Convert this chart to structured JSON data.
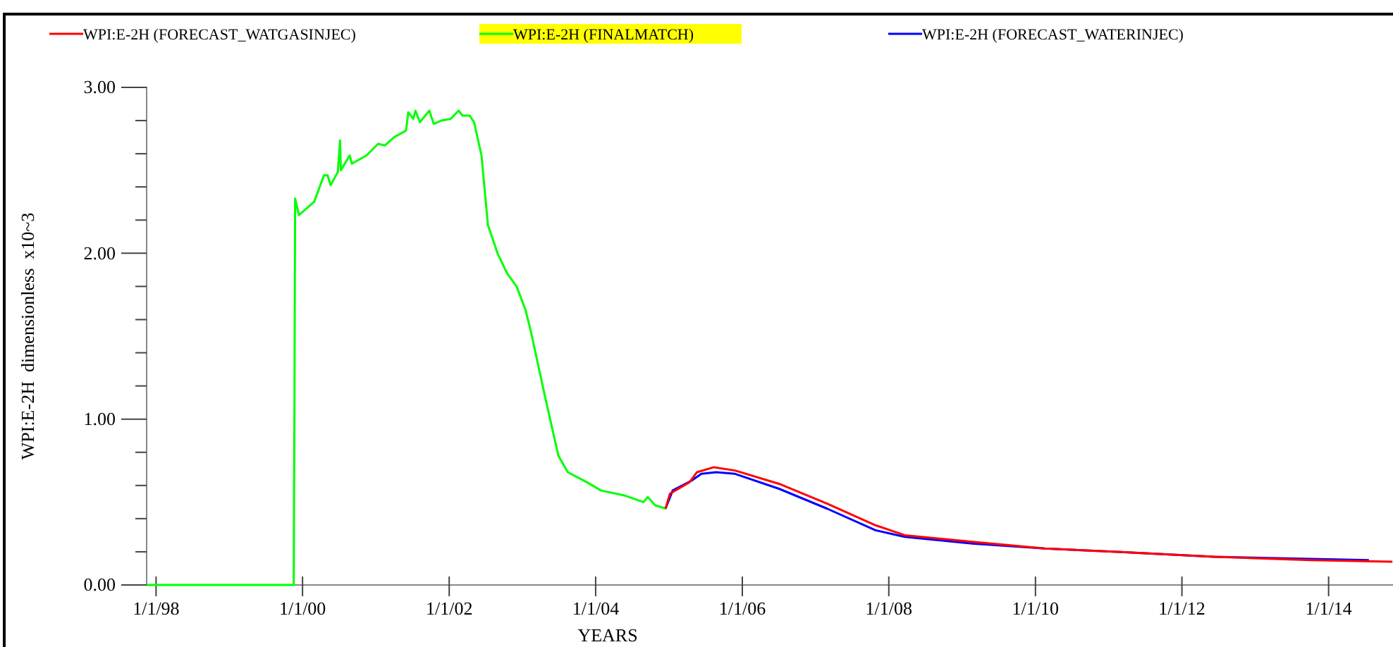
{
  "chart_data": {
    "type": "line",
    "xlabel": "YEARS",
    "ylabel": "WPI:E-2H  dimensionless  x10~3",
    "xlim": [
      "1997-11-15",
      "2014-11-18"
    ],
    "xticks": [
      {
        "value": "1998-01-01",
        "label": "1/1/98"
      },
      {
        "value": "2000-01-01",
        "label": "1/1/00"
      },
      {
        "value": "2002-01-01",
        "label": "1/1/02"
      },
      {
        "value": "2004-01-01",
        "label": "1/1/04"
      },
      {
        "value": "2006-01-01",
        "label": "1/1/06"
      },
      {
        "value": "2008-01-01",
        "label": "1/1/08"
      },
      {
        "value": "2010-01-01",
        "label": "1/1/10"
      },
      {
        "value": "2012-01-01",
        "label": "1/1/12"
      },
      {
        "value": "2014-01-01",
        "label": "1/1/14"
      }
    ],
    "ylim": [
      0,
      3
    ],
    "yticks": [
      {
        "value": 0,
        "label": "0.00"
      },
      {
        "value": 0.2,
        "label": null
      },
      {
        "value": 0.4,
        "label": null
      },
      {
        "value": 0.6,
        "label": null
      },
      {
        "value": 0.8,
        "label": null
      },
      {
        "value": 1,
        "label": "1.00"
      },
      {
        "value": 1.2,
        "label": null
      },
      {
        "value": 1.4,
        "label": null
      },
      {
        "value": 1.6,
        "label": null
      },
      {
        "value": 1.8,
        "label": null
      },
      {
        "value": 2,
        "label": "2.00"
      },
      {
        "value": 2.2,
        "label": null
      },
      {
        "value": 2.4,
        "label": null
      },
      {
        "value": 2.6,
        "label": null
      },
      {
        "value": 2.8,
        "label": null
      },
      {
        "value": 3,
        "label": "3.00"
      }
    ],
    "legend": "top",
    "marker": "none",
    "line_style": "solid",
    "series": [
      {
        "name": "WPI:E-2H (FORECAST_WATGASINJEC)",
        "color": "#ff0000",
        "x": [
          "2004-12-14",
          "2005-01-05",
          "2005-04-13",
          "2005-05-20",
          "2005-08-12",
          "2005-11-26",
          "2006-07-03",
          "2007-02-28",
          "2007-10-27",
          "2008-03-21",
          "2009-02-21",
          "2010-02-17",
          "2011-02-14",
          "2012-06-10",
          "2013-10-05",
          "2014-11-15"
        ],
        "values": [
          0.46,
          0.55,
          0.62,
          0.68,
          0.71,
          0.69,
          0.61,
          0.49,
          0.36,
          0.3,
          0.26,
          0.22,
          0.2,
          0.17,
          0.15,
          0.14
        ]
      },
      {
        "name": "WPI:E-2H (FINALMATCH)",
        "color": "#00ff00",
        "x": [
          "1997-11-15",
          "1999-11-18",
          "1999-11-22",
          "1999-11-25",
          "1999-12-14",
          "2000-02-28",
          "2000-04-17",
          "2000-05-05",
          "2000-05-20",
          "2000-06-25",
          "2000-07-06",
          "2000-07-10",
          "2000-08-23",
          "2000-09-03",
          "2000-11-15",
          "2001-01-12",
          "2001-02-14",
          "2001-04-02",
          "2001-05-31",
          "2001-06-11",
          "2001-07-06",
          "2001-07-17",
          "2001-08-08",
          "2001-09-24",
          "2001-10-16",
          "2001-11-22",
          "2002-01-08",
          "2002-02-17",
          "2002-03-08",
          "2002-04-13",
          "2002-05-05",
          "2002-06-11",
          "2002-07-13",
          "2002-08-30",
          "2002-10-16",
          "2002-12-03",
          "2003-01-16",
          "2003-02-10",
          "2003-04-21",
          "2003-06-29",
          "2003-08-15",
          "2003-11-18",
          "2004-01-27",
          "2004-05-23",
          "2004-08-26",
          "2004-09-17",
          "2004-10-24",
          "2004-12-17"
        ],
        "values": [
          0,
          0,
          1.17,
          2.33,
          2.23,
          2.31,
          2.47,
          2.47,
          2.41,
          2.49,
          2.68,
          2.5,
          2.59,
          2.54,
          2.59,
          2.66,
          2.65,
          2.7,
          2.74,
          2.85,
          2.81,
          2.86,
          2.79,
          2.86,
          2.78,
          2.8,
          2.81,
          2.86,
          2.83,
          2.83,
          2.79,
          2.59,
          2.17,
          2.0,
          1.88,
          1.8,
          1.66,
          1.54,
          1.15,
          0.78,
          0.68,
          0.62,
          0.57,
          0.54,
          0.5,
          0.53,
          0.48,
          0.46
        ]
      },
      {
        "name": "WPI:E-2H (FORECAST_WATERINJEC)",
        "color": "#0000ff",
        "x": [
          "2004-12-14",
          "2005-01-19",
          "2005-04-24",
          "2005-06-11",
          "2005-08-23",
          "2005-11-26",
          "2006-07-03",
          "2007-02-28",
          "2007-10-27",
          "2008-03-21",
          "2009-02-21",
          "2010-02-17",
          "2011-02-14",
          "2012-06-10",
          "2014-07-21"
        ],
        "values": [
          0.46,
          0.57,
          0.63,
          0.67,
          0.68,
          0.67,
          0.58,
          0.46,
          0.33,
          0.29,
          0.25,
          0.22,
          0.2,
          0.17,
          0.15
        ]
      }
    ]
  }
}
